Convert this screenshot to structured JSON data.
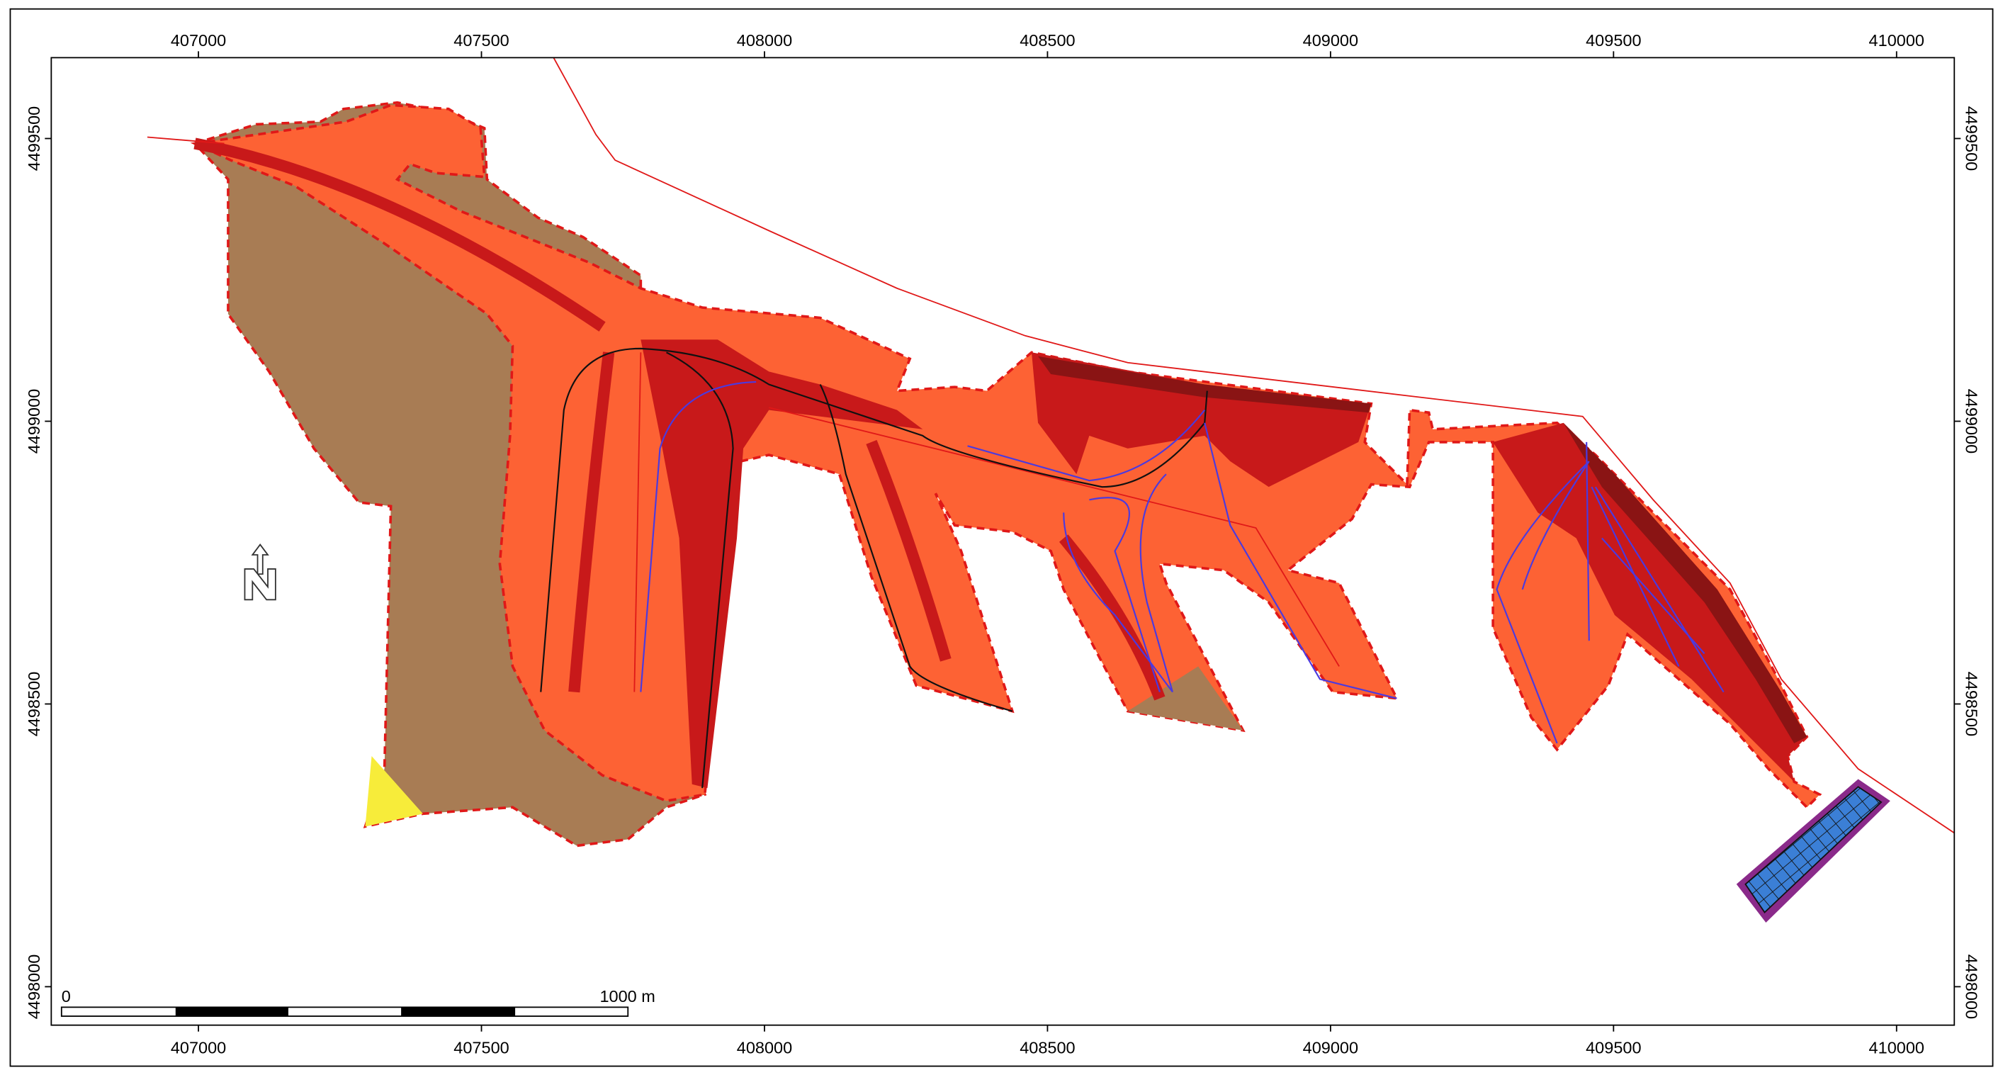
{
  "map": {
    "xlim": [
      406740,
      410102
    ],
    "ylim": [
      4497932,
      4499643
    ],
    "xticks": [
      407000,
      407500,
      408000,
      408500,
      409000,
      409500,
      410000
    ],
    "yticks": [
      4498000,
      4498500,
      4499000,
      4499500
    ],
    "scale_bar": {
      "start_label": "0",
      "end_label": "1000 m"
    }
  }
}
